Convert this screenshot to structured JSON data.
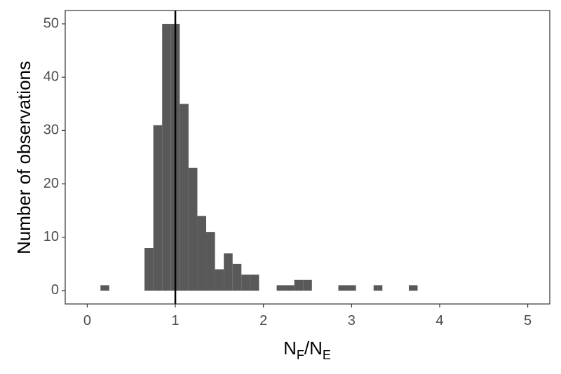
{
  "chart_data": {
    "type": "histogram",
    "ylabel": "Number of observations",
    "xlabel": [
      {
        "text": "N"
      },
      {
        "text": "F",
        "subscript": true
      },
      {
        "text": "/"
      },
      {
        "text": "N"
      },
      {
        "text": "E",
        "subscript": true
      }
    ],
    "bins": [
      0.15,
      0.25,
      0.35,
      0.45,
      0.55,
      0.65,
      0.75,
      0.85,
      0.95,
      1.05,
      1.15,
      1.25,
      1.35,
      1.45,
      1.55,
      1.65,
      1.75,
      1.85,
      1.95,
      2.05,
      2.15,
      2.25,
      2.35,
      2.45,
      2.55,
      2.65,
      2.75,
      2.85,
      2.95,
      3.05,
      3.15,
      3.25,
      3.35,
      3.45,
      3.55,
      3.65,
      3.75
    ],
    "counts": [
      1,
      0,
      0,
      0,
      0,
      8,
      31,
      50,
      50,
      35,
      23,
      14,
      11,
      4,
      7,
      5,
      3,
      3,
      0,
      0,
      1,
      1,
      2,
      2,
      0,
      0,
      0,
      1,
      1,
      0,
      0,
      1,
      0,
      0,
      0,
      1
    ],
    "color": "#595959",
    "vline": 1,
    "vline_color": "#000000",
    "xlim": [
      -0.25,
      5.25
    ],
    "ylim": [
      -2.5,
      52.5
    ],
    "xticks": [
      0,
      1,
      2,
      3,
      4,
      5
    ],
    "yticks": [
      0,
      10,
      20,
      30,
      40,
      50
    ],
    "grid": false
  }
}
